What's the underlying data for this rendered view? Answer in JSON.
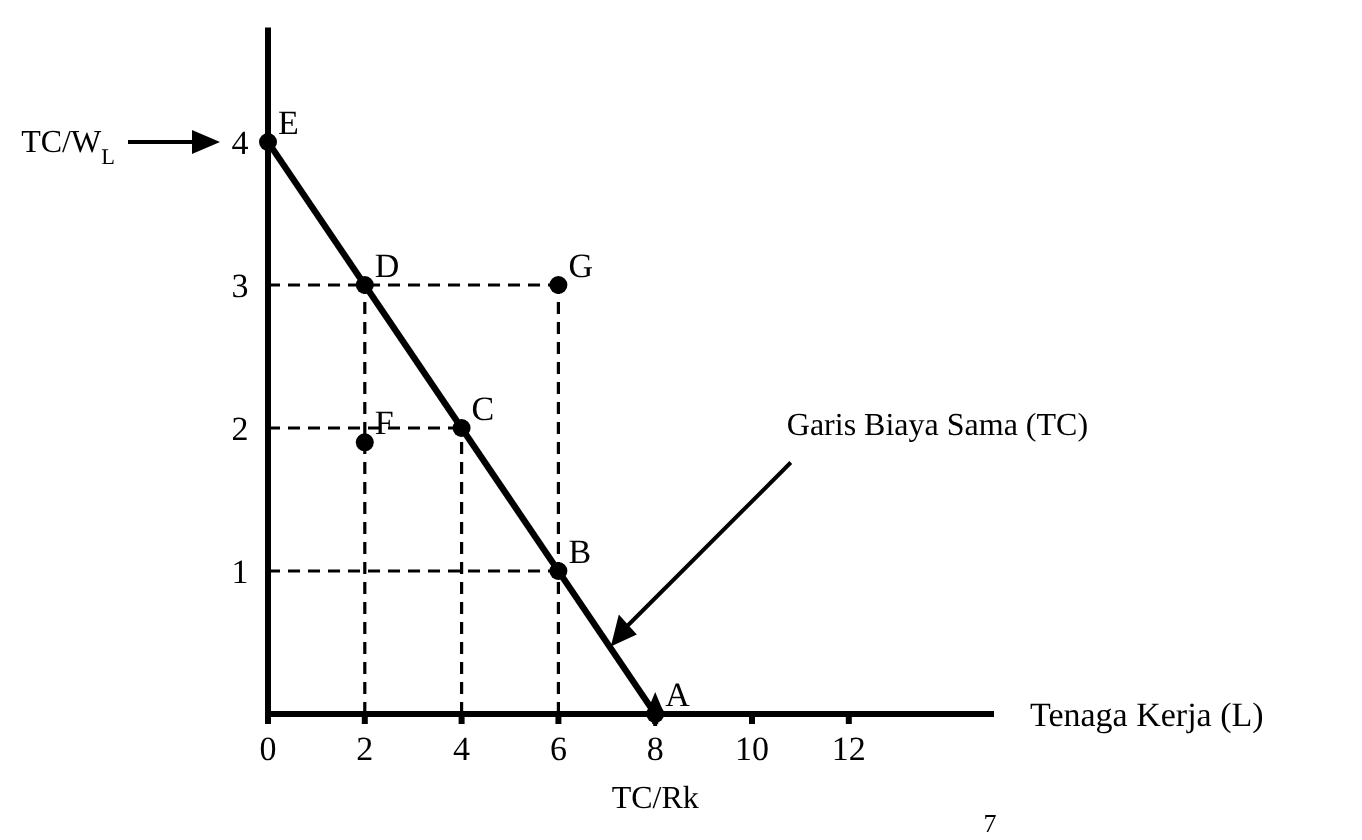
{
  "chart_data": {
    "type": "line",
    "xlabel": "Tenaga Kerja (L)",
    "ylabel": "TC/W$_{L}$",
    "xlim": [
      0,
      15
    ],
    "ylim": [
      0,
      4.8
    ],
    "xticks": [
      0,
      2,
      4,
      6,
      8,
      10,
      12
    ],
    "yticks": [
      1,
      2,
      3,
      4
    ],
    "grid": false,
    "series": [
      {
        "type": "line",
        "x": [
          0,
          6
        ],
        "values": [
          3,
          3
        ],
        "color": "#000000",
        "line_style": "dashed",
        "marker": "none"
      },
      {
        "type": "line",
        "x": [
          0,
          4
        ],
        "values": [
          2,
          2
        ],
        "color": "#000000",
        "line_style": "dashed",
        "marker": "none"
      },
      {
        "type": "line",
        "x": [
          0,
          6
        ],
        "values": [
          1,
          1
        ],
        "color": "#000000",
        "line_style": "dashed",
        "marker": "none"
      },
      {
        "type": "line",
        "x": [
          2,
          2
        ],
        "values": [
          0,
          3
        ],
        "color": "#000000",
        "line_style": "dashed",
        "marker": "none"
      },
      {
        "type": "line",
        "x": [
          4,
          4
        ],
        "values": [
          0,
          2
        ],
        "color": "#000000",
        "line_style": "dashed",
        "marker": "none"
      },
      {
        "type": "line",
        "x": [
          6,
          6
        ],
        "values": [
          0,
          3
        ],
        "color": "#000000",
        "line_style": "dashed",
        "marker": "none"
      },
      {
        "type": "line",
        "x": [
          0,
          8
        ],
        "values": [
          4,
          0
        ],
        "color": "#000000",
        "line_style": "solid",
        "marker": "none"
      },
      {
        "type": "scatter",
        "x": [
          8,
          6,
          4,
          2,
          0,
          2,
          6
        ],
        "values": [
          0,
          1,
          2,
          3,
          4,
          1.9,
          3
        ],
        "color": "#000000",
        "marker": "circle"
      }
    ],
    "annotations": [
      {
        "text": "A",
        "x": 8,
        "y": 0
      },
      {
        "text": "B",
        "x": 6,
        "y": 1
      },
      {
        "text": "C",
        "x": 4,
        "y": 2
      },
      {
        "text": "D",
        "x": 2,
        "y": 3
      },
      {
        "text": "E",
        "x": 0,
        "y": 4
      },
      {
        "text": "F",
        "x": 2,
        "y": 1.9
      },
      {
        "text": "G",
        "x": 6,
        "y": 3
      },
      "Garis Biaya Sama (TC)",
      {
        "text": "TC/Rk",
        "x": 8,
        "y": 0
      },
      "7"
    ]
  }
}
